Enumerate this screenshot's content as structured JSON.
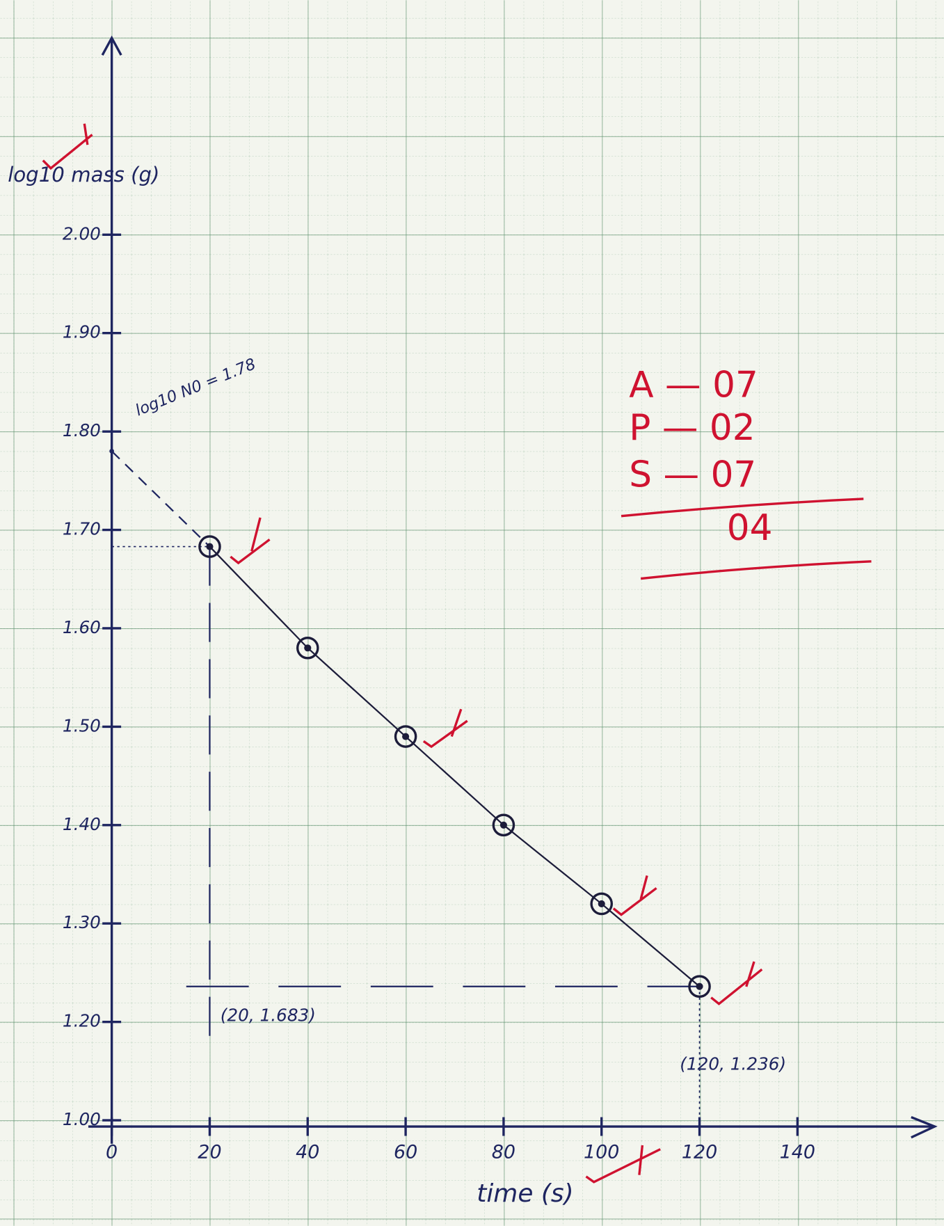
{
  "chart_data": {
    "type": "line",
    "x_label": "time (s)",
    "y_label": "log10 mass (g)",
    "x": [
      20,
      40,
      60,
      80,
      100,
      120
    ],
    "values": [
      1.683,
      1.58,
      1.49,
      1.4,
      1.32,
      1.236
    ],
    "color": "#1c1c3a",
    "xlim": [
      0,
      168
    ],
    "xticks": [
      0,
      20,
      40,
      60,
      80,
      100,
      120,
      140
    ],
    "ylim": [
      1.0,
      2.2
    ],
    "yticks": [
      {
        "value": 1.0,
        "label": "1.00"
      },
      {
        "value": 1.2,
        "label": "1.20"
      },
      {
        "value": 1.3,
        "label": "1.30"
      },
      {
        "value": 1.4,
        "label": "1.40"
      },
      {
        "value": 1.5,
        "label": "1.50"
      },
      {
        "value": 1.6,
        "label": "1.60"
      },
      {
        "value": 1.7,
        "label": "1.70"
      },
      {
        "value": 1.8,
        "label": "1.80"
      },
      {
        "value": 1.9,
        "label": "1.90"
      },
      {
        "value": 2.0,
        "label": "2.00"
      }
    ],
    "intercept": {
      "label": "log10 N0 = 1.78",
      "value": 1.78
    },
    "highlighted_points": [
      {
        "label": "(20, 1.683)",
        "x": 20,
        "y": 1.683
      },
      {
        "label": "(120, 1.236)",
        "x": 120,
        "y": 1.236
      }
    ],
    "marks": [
      "A — 07",
      "P — 02",
      "S — 07",
      "04"
    ]
  }
}
